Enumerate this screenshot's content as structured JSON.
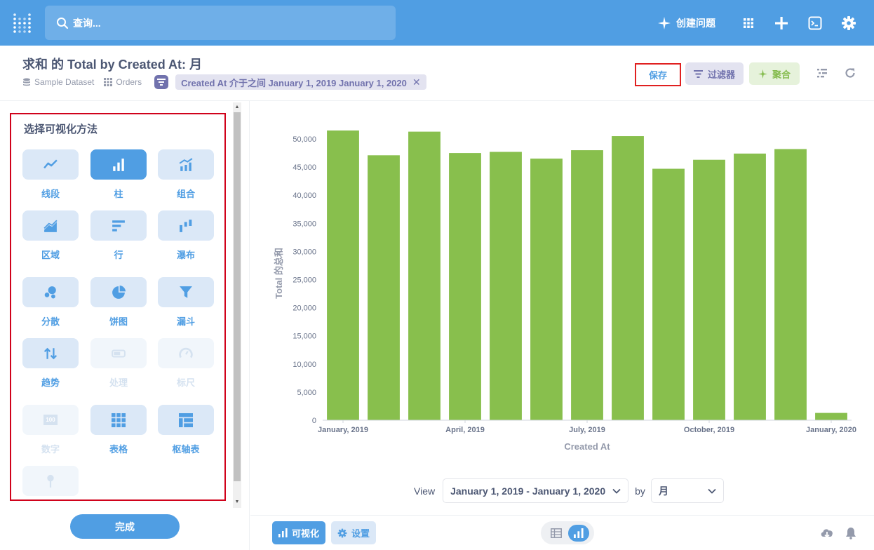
{
  "colors": {
    "nav_bg": "#509ee3",
    "brand": "#509ee3",
    "filter": "#7172ad",
    "summarize": "#84bb4c",
    "bar": "#88bf4d",
    "highlight_border": "#e02020"
  },
  "nav": {
    "logo_icon": "metabase-logo-icon",
    "search_placeholder": "查询...",
    "new_question_label": "创建问题",
    "icons": [
      "grid-icon",
      "plus-icon",
      "terminal-icon",
      "gear-icon"
    ]
  },
  "header": {
    "title": "求和 的 Total by Created At: 月",
    "breadcrumbs": [
      {
        "icon": "database-icon",
        "label": "Sample Dataset"
      },
      {
        "icon": "table-icon",
        "label": "Orders"
      }
    ],
    "filter_pill": "Created At 介于之间 January 1, 2019 January 1, 2020",
    "save_label": "保存",
    "filter_label": "过滤器",
    "summarize_label": "聚合"
  },
  "sidebar": {
    "title": "选择可视化方法",
    "done_label": "完成",
    "viz_types": [
      {
        "label": "线段",
        "icon": "line-chart-icon",
        "state": "normal"
      },
      {
        "label": "柱",
        "icon": "bar-chart-icon",
        "state": "active"
      },
      {
        "label": "组合",
        "icon": "combo-chart-icon",
        "state": "normal"
      },
      {
        "label": "区域",
        "icon": "area-chart-icon",
        "state": "normal"
      },
      {
        "label": "行",
        "icon": "row-chart-icon",
        "state": "normal"
      },
      {
        "label": "瀑布",
        "icon": "waterfall-chart-icon",
        "state": "normal"
      },
      {
        "label": "分散",
        "icon": "scatter-chart-icon",
        "state": "normal"
      },
      {
        "label": "饼图",
        "icon": "pie-chart-icon",
        "state": "normal"
      },
      {
        "label": "漏斗",
        "icon": "funnel-icon",
        "state": "normal"
      },
      {
        "label": "趋势",
        "icon": "trend-icon",
        "state": "normal"
      },
      {
        "label": "处理",
        "icon": "progress-icon",
        "state": "disabled"
      },
      {
        "label": "标尺",
        "icon": "gauge-icon",
        "state": "disabled"
      },
      {
        "label": "数字",
        "icon": "number-icon",
        "state": "disabled",
        "tile_text": "100"
      },
      {
        "label": "表格",
        "icon": "table-grid-icon",
        "state": "normal"
      },
      {
        "label": "枢轴表",
        "icon": "pivot-table-icon",
        "state": "normal"
      },
      {
        "label": "地图",
        "icon": "map-pin-icon",
        "state": "disabled"
      }
    ]
  },
  "viewbar": {
    "view_label": "View",
    "range_value": "January 1, 2019 - January 1, 2020",
    "by_label": "by",
    "unit_value": "月"
  },
  "footer": {
    "visualize_label": "可视化",
    "settings_label": "设置",
    "icons": [
      "table-view-icon",
      "chart-view-icon",
      "download-icon",
      "bell-icon"
    ]
  },
  "chart_data": {
    "type": "bar",
    "xlabel": "Created At",
    "ylabel": "Total 的总和",
    "categories": [
      "2019-01",
      "2019-02",
      "2019-03",
      "2019-04",
      "2019-05",
      "2019-06",
      "2019-07",
      "2019-08",
      "2019-09",
      "2019-10",
      "2019-11",
      "2019-12",
      "2020-01"
    ],
    "values": [
      51500,
      47100,
      51300,
      47500,
      47700,
      46500,
      48000,
      50500,
      44700,
      46300,
      47400,
      48200,
      1300
    ],
    "x_tick_labels": [
      "January, 2019",
      "April, 2019",
      "July, 2019",
      "October, 2019",
      "January, 2020"
    ],
    "x_tick_positions": [
      0,
      3,
      6,
      9,
      12
    ],
    "y_ticks": [
      0,
      5000,
      10000,
      15000,
      20000,
      25000,
      30000,
      35000,
      40000,
      45000,
      50000
    ],
    "y_tick_labels": [
      "0",
      "5,000",
      "10,000",
      "15,000",
      "20,000",
      "25,000",
      "30,000",
      "35,000",
      "40,000",
      "45,000",
      "50,000"
    ],
    "ylim": [
      0,
      53000
    ],
    "grid": false,
    "legend": "none"
  }
}
